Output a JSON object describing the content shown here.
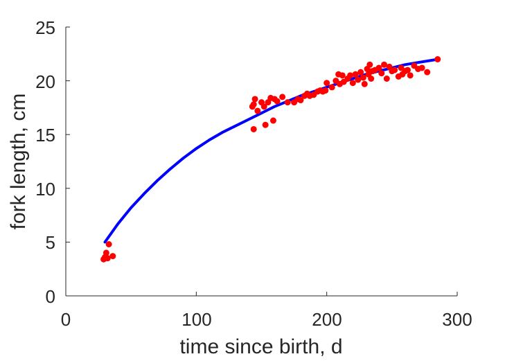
{
  "chart_data": {
    "type": "scatter",
    "title": "",
    "xlabel": "time since birth, d",
    "ylabel": "fork length, cm",
    "xlim": [
      0,
      300
    ],
    "ylim": [
      0,
      25
    ],
    "xticks": [
      0,
      100,
      200,
      300
    ],
    "yticks": [
      0,
      5,
      10,
      15,
      20,
      25
    ],
    "xtick_labels": [
      "0",
      "100",
      "200",
      "300"
    ],
    "ytick_labels": [
      "0",
      "5",
      "10",
      "15",
      "20",
      "25"
    ],
    "grid": false,
    "legend": "none",
    "series": [
      {
        "kind": "line",
        "color": "#0000ff",
        "x": [
          30,
          40,
          50,
          60,
          70,
          80,
          90,
          100,
          110,
          120,
          130,
          140,
          150,
          160,
          170,
          180,
          190,
          200,
          210,
          220,
          230,
          240,
          250,
          260,
          270,
          285
        ],
        "y": [
          5.0,
          6.7,
          8.2,
          9.5,
          10.7,
          11.8,
          12.8,
          13.7,
          14.5,
          15.2,
          15.8,
          16.4,
          17.0,
          17.6,
          18.1,
          18.6,
          19.0,
          19.4,
          19.8,
          20.2,
          20.6,
          20.9,
          21.2,
          21.5,
          21.7,
          22.0
        ]
      },
      {
        "kind": "scatter",
        "color": "#ff0000",
        "x": [
          29,
          30,
          31,
          32,
          33,
          36,
          143,
          144,
          144,
          145,
          147,
          150,
          152,
          153,
          155,
          157,
          159,
          160,
          162,
          166,
          170,
          175,
          178,
          180,
          183,
          185,
          187,
          190,
          193,
          195,
          197,
          199,
          200,
          204,
          207,
          209,
          210,
          212,
          213,
          216,
          218,
          220,
          222,
          224,
          226,
          228,
          229,
          231,
          232,
          233,
          234,
          235,
          237,
          240,
          242,
          244,
          246,
          248,
          250,
          252,
          255,
          257,
          258,
          260,
          262,
          264,
          267,
          270,
          273,
          277,
          285
        ],
        "y": [
          3.4,
          3.6,
          4.0,
          3.5,
          4.8,
          3.7,
          17.6,
          17.8,
          15.5,
          18.3,
          17.2,
          18.0,
          17.6,
          15.9,
          18.0,
          18.4,
          16.3,
          18.3,
          18.1,
          18.5,
          18.0,
          18.0,
          18.3,
          18.2,
          18.6,
          18.8,
          18.6,
          18.7,
          19.0,
          19.1,
          19.0,
          19.1,
          19.8,
          19.4,
          20.0,
          20.6,
          19.7,
          20.5,
          19.9,
          20.2,
          20.5,
          19.8,
          20.6,
          20.1,
          20.8,
          20.3,
          19.7,
          21.1,
          20.6,
          21.5,
          20.2,
          20.9,
          21.0,
          21.2,
          20.7,
          21.5,
          20.2,
          21.3,
          20.9,
          21.0,
          20.4,
          21.2,
          20.6,
          20.9,
          21.0,
          20.5,
          21.4,
          21.1,
          21.2,
          20.8,
          22.0
        ]
      }
    ]
  }
}
